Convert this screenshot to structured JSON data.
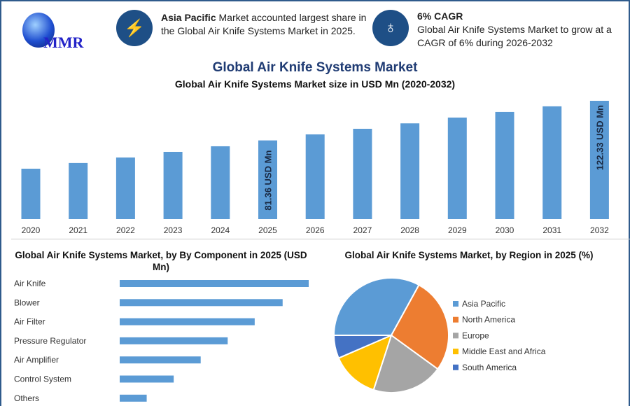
{
  "logo": {
    "text": "MMR"
  },
  "info1": {
    "bold": "Asia Pacific",
    "text": " Market accounted largest share in the Global Air Knife Systems Market in 2025.",
    "icon": "lightning-icon"
  },
  "info2": {
    "title": "6% CAGR",
    "text": "Global Air Knife Systems Market to grow at a CAGR of 6% during 2026-2032",
    "icon": "growth-icon"
  },
  "title": "Global Air Knife Systems Market",
  "colors": {
    "bar": "#5b9bd5",
    "accent": "#1e4f86",
    "ap": "#5b9bd5",
    "na": "#ed7d31",
    "eu": "#a5a5a5",
    "mea": "#ffc000",
    "sa": "#4472c4"
  },
  "chart_data": [
    {
      "type": "bar",
      "title": "Global Air Knife Systems Market size in USD Mn (2020-2032)",
      "categories": [
        "2020",
        "2021",
        "2022",
        "2023",
        "2024",
        "2025",
        "2026",
        "2027",
        "2028",
        "2029",
        "2030",
        "2031",
        "2032"
      ],
      "values": [
        52.1,
        58.0,
        63.7,
        69.5,
        75.3,
        81.36,
        87.6,
        93.4,
        99.0,
        105.0,
        110.8,
        116.6,
        122.33
      ],
      "data_labels": {
        "2025": "81.36 USD Mn",
        "2032": "122.33 USD Mn"
      }
    },
    {
      "type": "bar",
      "orientation": "horizontal",
      "title": "Global Air Knife Systems Market, by By Component in 2025 (USD Mn)",
      "categories": [
        "Air Knife",
        "Blower",
        "Air Filter",
        "Pressure Regulator",
        "Air Amplifier",
        "Control System",
        "Others"
      ],
      "values": [
        20.3,
        17.5,
        14.5,
        11.6,
        8.7,
        5.8,
        2.9
      ]
    },
    {
      "type": "pie",
      "title": "Global Air Knife Systems Market, by Region in 2025 (%)",
      "categories": [
        "Asia Pacific",
        "North America",
        "Europe",
        "Middle East and Africa",
        "South America"
      ],
      "values": [
        33,
        27,
        20,
        13.5,
        6.5
      ],
      "legend": "right"
    }
  ]
}
